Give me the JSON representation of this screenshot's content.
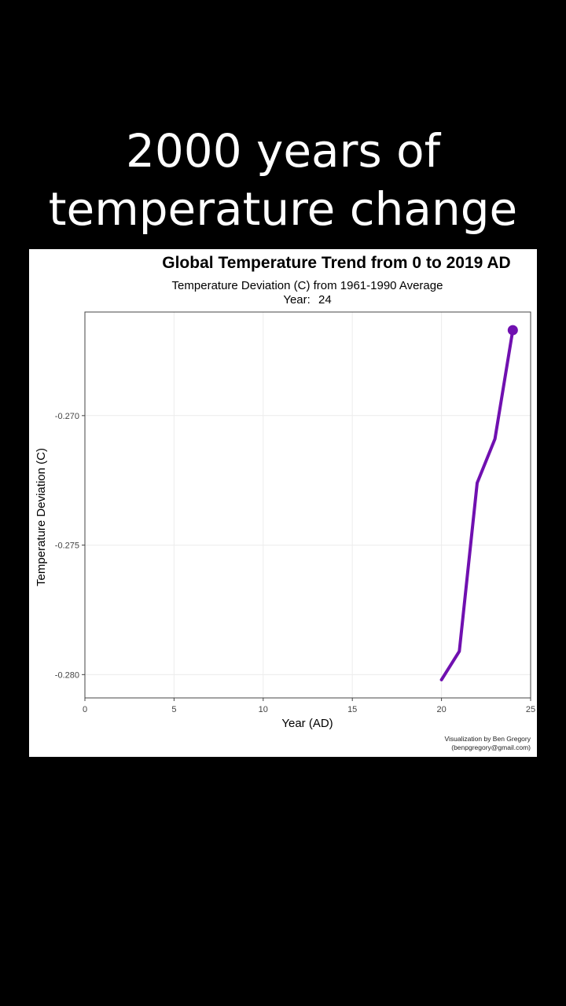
{
  "caption": {
    "line1": "2000 years of",
    "line2": "temperature change"
  },
  "colors": {
    "background": "#000000",
    "panel": "#ffffff",
    "series": "#7010b0"
  },
  "chart_data": {
    "type": "line",
    "title": "Global Temperature Trend from 0 to 2019 AD",
    "subtitle": "Temperature Deviation (C) from 1961-1990 Average",
    "year_label": "Year:",
    "year_value": "24",
    "xlabel": "Year (AD)",
    "ylabel": "Temperature Deviation (C)",
    "xlim": [
      0,
      25
    ],
    "ylim": [
      -0.2809,
      -0.266
    ],
    "x_ticks": [
      0,
      5,
      10,
      15,
      20,
      25
    ],
    "x_tick_labels": [
      "0",
      "5",
      "10",
      "15",
      "20",
      "25"
    ],
    "y_ticks": [
      -0.28,
      -0.275,
      -0.27
    ],
    "y_tick_labels": [
      "-0.280",
      "-0.275",
      "-0.270"
    ],
    "grid": true,
    "series": [
      {
        "x": [
          20,
          21,
          22,
          23,
          24
        ],
        "y": [
          -0.2802,
          -0.2791,
          -0.2726,
          -0.2709,
          -0.2667
        ],
        "marker_last": true
      }
    ],
    "credit_line1": "Visualization by Ben Gregory",
    "credit_line2": "(benpgregory@gmail.com)"
  }
}
